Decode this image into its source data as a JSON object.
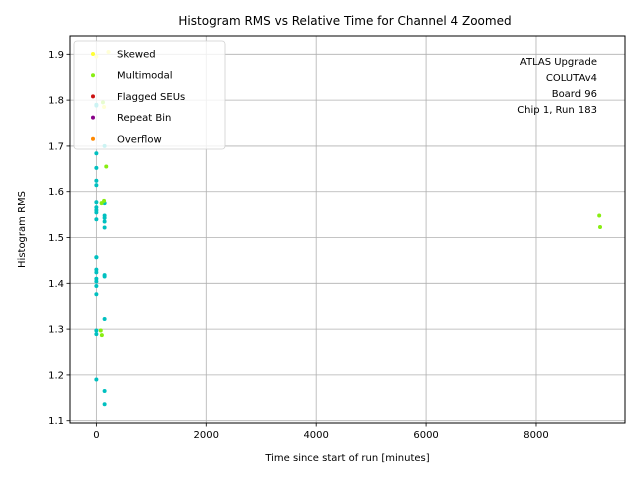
{
  "chart_data": {
    "type": "scatter",
    "title": "Histogram RMS vs Relative Time for Channel 4 Zoomed",
    "xlabel": "Time since start of run [minutes]",
    "ylabel": "Histogram RMS",
    "xlim": [
      -480,
      9620
    ],
    "ylim": [
      1.095,
      1.94
    ],
    "xticks": [
      0,
      2000,
      4000,
      6000,
      8000
    ],
    "xtick_labels": [
      "0",
      "2000",
      "4000",
      "6000",
      "8000"
    ],
    "yticks": [
      1.1,
      1.2,
      1.3,
      1.4,
      1.5,
      1.6,
      1.7,
      1.8,
      1.9
    ],
    "ytick_labels": [
      "1.1",
      "1.2",
      "1.3",
      "1.4",
      "1.5",
      "1.6",
      "1.7",
      "1.8",
      "1.9"
    ],
    "grid": true,
    "legend_position": "top-left",
    "annotation": [
      "ATLAS Upgrade",
      "COLUTAv4",
      "Board 96",
      "Chip 1, Run 183"
    ],
    "series": [
      {
        "name": "Skewed",
        "color": "#ffff33",
        "x": [
          0,
          140,
          220
        ],
        "y": [
          1.895,
          1.785,
          1.905
        ]
      },
      {
        "name": "Multimodal",
        "color": "#88ee11",
        "x": [
          95,
          140,
          180,
          120,
          80,
          100,
          9150,
          9165
        ],
        "y": [
          1.575,
          1.58,
          1.655,
          1.795,
          1.297,
          1.287,
          1.548,
          1.523
        ]
      },
      {
        "name": "Flagged SEUs",
        "color": "#cc1111",
        "x": [],
        "y": []
      },
      {
        "name": "Repeat Bin",
        "color": "#880088",
        "x": [],
        "y": []
      },
      {
        "name": "Overflow",
        "color": "#ff8800",
        "x": [],
        "y": []
      },
      {
        "name": "",
        "color": "#00c0c0",
        "x": [
          0,
          0,
          0,
          0,
          0,
          0,
          0,
          0,
          0,
          0,
          0,
          0,
          0,
          0,
          0,
          0,
          0,
          0,
          0,
          0,
          0,
          0,
          150,
          150,
          150,
          150,
          150,
          150,
          150,
          150,
          150,
          150,
          150
        ],
        "y": [
          1.788,
          1.684,
          1.652,
          1.624,
          1.614,
          1.577,
          1.566,
          1.56,
          1.555,
          1.54,
          1.457,
          1.43,
          1.424,
          1.41,
          1.404,
          1.394,
          1.376,
          1.297,
          1.289,
          1.19,
          1.79,
          1.457,
          1.548,
          1.543,
          1.535,
          1.522,
          1.418,
          1.415,
          1.322,
          1.165,
          1.136,
          1.7,
          1.575
        ]
      }
    ]
  }
}
